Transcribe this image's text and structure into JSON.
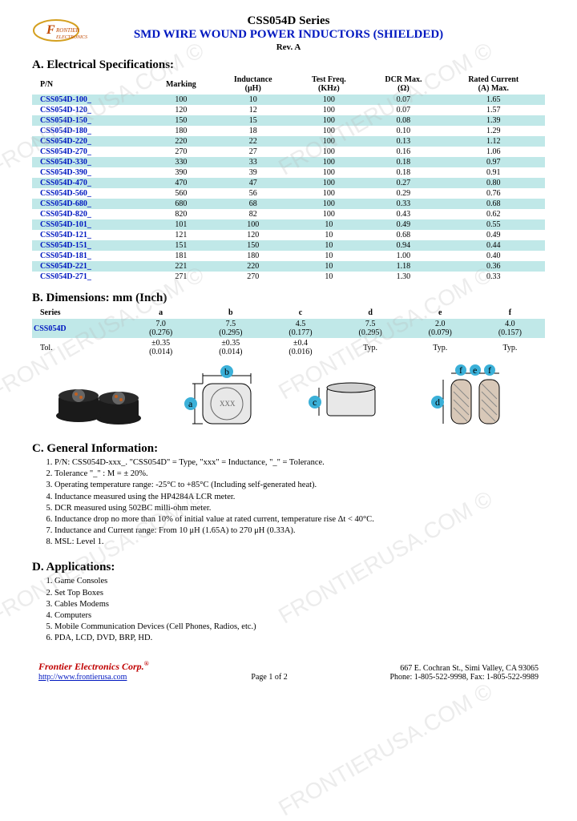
{
  "header": {
    "series": "CSS054D Series",
    "title": "SMD WIRE WOUND POWER INDUCTORS (SHIELDED)",
    "rev": "Rev. A"
  },
  "sectionA": {
    "title": "A. Electrical Specifications:",
    "columns": [
      "P/N",
      "Marking",
      "Inductance (μH)",
      "Test Freq. (KHz)",
      "DCR Max. (Ω)",
      "Rated Current (A) Max."
    ],
    "rows": [
      {
        "pn": "CSS054D-100_",
        "marking": "100",
        "ind": "10",
        "freq": "100",
        "dcr": "0.07",
        "cur": "1.65"
      },
      {
        "pn": "CSS054D-120_",
        "marking": "120",
        "ind": "12",
        "freq": "100",
        "dcr": "0.07",
        "cur": "1.57"
      },
      {
        "pn": "CSS054D-150_",
        "marking": "150",
        "ind": "15",
        "freq": "100",
        "dcr": "0.08",
        "cur": "1.39"
      },
      {
        "pn": "CSS054D-180_",
        "marking": "180",
        "ind": "18",
        "freq": "100",
        "dcr": "0.10",
        "cur": "1.29"
      },
      {
        "pn": "CSS054D-220_",
        "marking": "220",
        "ind": "22",
        "freq": "100",
        "dcr": "0.13",
        "cur": "1.12"
      },
      {
        "pn": "CSS054D-270_",
        "marking": "270",
        "ind": "27",
        "freq": "100",
        "dcr": "0.16",
        "cur": "1.06"
      },
      {
        "pn": "CSS054D-330_",
        "marking": "330",
        "ind": "33",
        "freq": "100",
        "dcr": "0.18",
        "cur": "0.97"
      },
      {
        "pn": "CSS054D-390_",
        "marking": "390",
        "ind": "39",
        "freq": "100",
        "dcr": "0.18",
        "cur": "0.91"
      },
      {
        "pn": "CSS054D-470_",
        "marking": "470",
        "ind": "47",
        "freq": "100",
        "dcr": "0.27",
        "cur": "0.80"
      },
      {
        "pn": "CSS054D-560_",
        "marking": "560",
        "ind": "56",
        "freq": "100",
        "dcr": "0.29",
        "cur": "0.76"
      },
      {
        "pn": "CSS054D-680_",
        "marking": "680",
        "ind": "68",
        "freq": "100",
        "dcr": "0.33",
        "cur": "0.68"
      },
      {
        "pn": "CSS054D-820_",
        "marking": "820",
        "ind": "82",
        "freq": "100",
        "dcr": "0.43",
        "cur": "0.62"
      },
      {
        "pn": "CSS054D-101_",
        "marking": "101",
        "ind": "100",
        "freq": "10",
        "dcr": "0.49",
        "cur": "0.55"
      },
      {
        "pn": "CSS054D-121_",
        "marking": "121",
        "ind": "120",
        "freq": "10",
        "dcr": "0.68",
        "cur": "0.49"
      },
      {
        "pn": "CSS054D-151_",
        "marking": "151",
        "ind": "150",
        "freq": "10",
        "dcr": "0.94",
        "cur": "0.44"
      },
      {
        "pn": "CSS054D-181_",
        "marking": "181",
        "ind": "180",
        "freq": "10",
        "dcr": "1.00",
        "cur": "0.40"
      },
      {
        "pn": "CSS054D-221_",
        "marking": "221",
        "ind": "220",
        "freq": "10",
        "dcr": "1.18",
        "cur": "0.36"
      },
      {
        "pn": "CSS054D-271_",
        "marking": "271",
        "ind": "270",
        "freq": "10",
        "dcr": "1.30",
        "cur": "0.33"
      }
    ],
    "band_color": "#c0e8e8"
  },
  "sectionB": {
    "title": "B. Dimensions: mm (Inch)",
    "columns": [
      "Series",
      "a",
      "b",
      "c",
      "d",
      "e",
      "f"
    ],
    "row_series": "CSS054D",
    "row_vals": [
      "7.0 (0.276)",
      "7.5 (0.295)",
      "4.5 (0.177)",
      "7.5 (0.295)",
      "2.0 (0.079)",
      "4.0 (0.157)"
    ],
    "tol_label": "Tol.",
    "tol_vals": [
      "±0.35 (0.014)",
      "±0.35 (0.014)",
      "±0.4 (0.016)",
      "Typ.",
      "Typ.",
      "Typ."
    ]
  },
  "diagram": {
    "labels": [
      "a",
      "b",
      "c",
      "d",
      "e",
      "f"
    ],
    "label_color": "#3bb0d8",
    "top_text": "XXX"
  },
  "sectionC": {
    "title": "C. General Information:",
    "items": [
      "P/N: CSS054D-xxx_. \"CSS054D\" = Type, \"xxx\" = Inductance, \"_\" = Tolerance.",
      "Tolerance \"_\" : M = ± 20%.",
      "Operating temperature range: -25°C to +85°C (Including self-generated heat).",
      "Inductance measured using the HP4284A LCR meter.",
      "DCR measured using 502BC milli-ohm meter.",
      "Inductance drop no more than 10% of initial value at rated current, temperature rise Δt < 40°C.",
      "Inductance and Current range: From 10 μH (1.65A) to 270 μH (0.33A).",
      "MSL: Level 1."
    ]
  },
  "sectionD": {
    "title": "D. Applications:",
    "items": [
      "Game Consoles",
      "Set Top Boxes",
      "Cables Modems",
      "Computers",
      "Mobile Communication Devices (Cell Phones, Radios, etc.)",
      "PDA, LCD, DVD, BRP, HD."
    ]
  },
  "footer": {
    "corp": "Frontier Electronics Corp.",
    "url": "http://www.frontierusa.com",
    "page": "Page 1 of 2",
    "addr": "667 E. Cochran St., Simi Valley, CA 93065",
    "phone": "Phone: 1-805-522-9998, Fax: 1-805-522-9989"
  },
  "watermark_text": "FRONTIERUSA.COM ©",
  "colors": {
    "title_blue": "#0018c0",
    "band": "#c0e8e8",
    "corp_red": "#c00000",
    "diagram_circle": "#3bb0d8"
  }
}
